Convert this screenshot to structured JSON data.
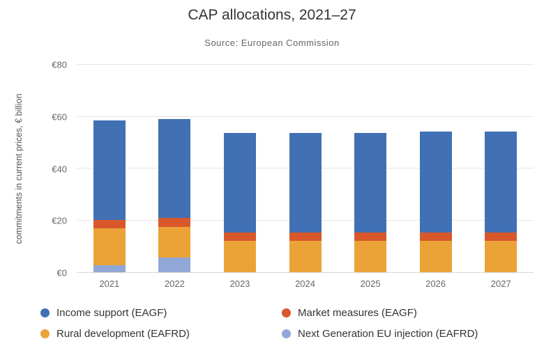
{
  "title": "CAP allocations, 2021–27",
  "subtitle": "Source: European Commission",
  "chart_data": {
    "type": "bar",
    "stacked": true,
    "title": "CAP allocations, 2021–27",
    "subtitle": "Source: European Commission",
    "xlabel": "",
    "ylabel": "commitments in current prices, € billion",
    "ylim": [
      0,
      80
    ],
    "ytick_interval": 20,
    "ytick_prefix": "€",
    "grid": true,
    "legend_position": "bottom",
    "categories": [
      "2021",
      "2022",
      "2023",
      "2024",
      "2025",
      "2026",
      "2027"
    ],
    "series": [
      {
        "name": "Next Generation EU injection (EAFRD)",
        "color": "#91a7d7",
        "values": [
          2.6,
          5.7,
          0,
          0,
          0,
          0,
          0
        ]
      },
      {
        "name": "Rural development (EAFRD)",
        "color": "#eba338",
        "values": [
          14.2,
          11.8,
          12.2,
          12.2,
          12.2,
          12.2,
          12.2
        ]
      },
      {
        "name": "Market measures (EAGF)",
        "color": "#d9582b",
        "values": [
          3.3,
          3.5,
          3.0,
          3.0,
          3.0,
          3.1,
          3.1
        ]
      },
      {
        "name": "Income support (EAGF)",
        "color": "#4170b4",
        "values": [
          38.4,
          38.0,
          38.6,
          38.6,
          38.6,
          39.0,
          39.0
        ]
      }
    ],
    "legend": [
      {
        "label": "Income support (EAGF)",
        "color": "#4170b4"
      },
      {
        "label": "Market measures (EAGF)",
        "color": "#d9582b"
      },
      {
        "label": "Rural development (EAFRD)",
        "color": "#eba338"
      },
      {
        "label": "Next Generation EU injection (EAFRD)",
        "color": "#91a7d7"
      }
    ]
  }
}
